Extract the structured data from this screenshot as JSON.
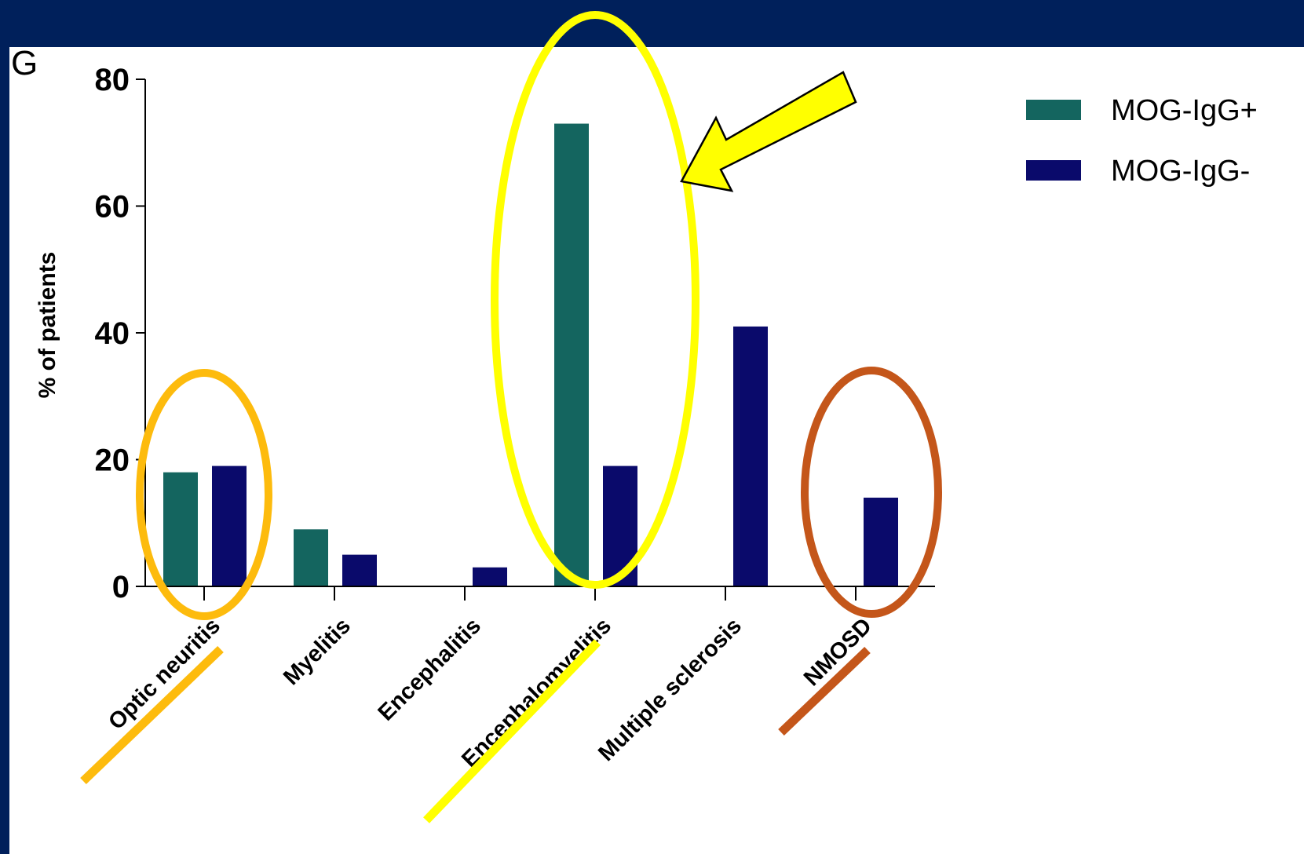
{
  "panel_label": "G",
  "colors": {
    "frame": "#00205b",
    "series_pos": "#14655f",
    "series_neg": "#0a0a6b",
    "axis": "#000000",
    "highlight_orange": "#fdbb0d",
    "highlight_yellow": "#ffff00",
    "highlight_brown": "#c4561a"
  },
  "chart_data": {
    "type": "bar",
    "ylabel": "% of patients",
    "xlabel": "",
    "ylim": [
      0,
      80
    ],
    "yticks": [
      0,
      20,
      40,
      60,
      80
    ],
    "categories": [
      "Optic neuritis",
      "Myelitis",
      "Encephalitis",
      "Encephalomyelitis",
      "Multiple sclerosis",
      "NMOSD"
    ],
    "series": [
      {
        "name": "MOG-IgG+",
        "values": [
          18,
          9,
          0,
          73,
          0,
          0
        ]
      },
      {
        "name": "MOG-IgG-",
        "values": [
          19,
          5,
          3,
          19,
          41,
          14
        ]
      }
    ],
    "legend_position": "top-right"
  },
  "annotations": {
    "circled_categories": [
      "Optic neuritis",
      "Encephalomyelitis",
      "NMOSD"
    ],
    "arrow_target": "Encephalomyelitis"
  }
}
